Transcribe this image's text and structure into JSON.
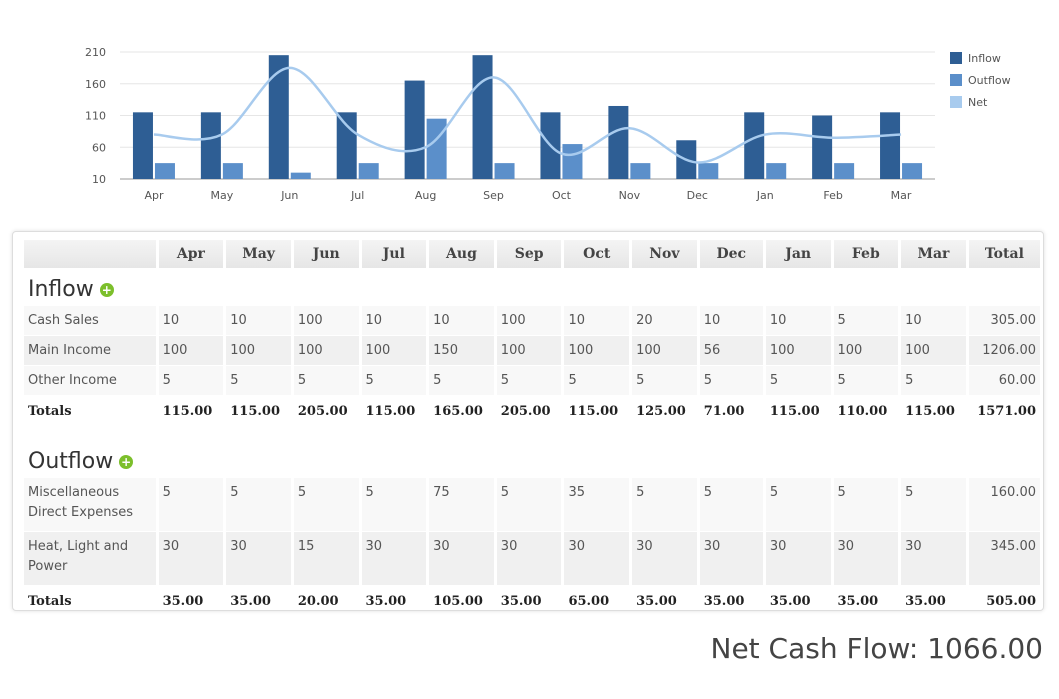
{
  "chart_data": {
    "type": "bar",
    "categories": [
      "Apr",
      "May",
      "Jun",
      "Jul",
      "Aug",
      "Sep",
      "Oct",
      "Nov",
      "Dec",
      "Jan",
      "Feb",
      "Mar"
    ],
    "series": [
      {
        "name": "Inflow",
        "type": "bar",
        "color": "#2e5e94",
        "values": [
          115,
          115,
          205,
          115,
          165,
          205,
          115,
          125,
          71,
          115,
          110,
          115
        ]
      },
      {
        "name": "Outflow",
        "type": "bar",
        "color": "#5b8fca",
        "values": [
          35,
          35,
          20,
          35,
          105,
          35,
          65,
          35,
          35,
          35,
          35,
          35
        ]
      },
      {
        "name": "Net",
        "type": "line",
        "color": "#a8cbee",
        "values": [
          80,
          80,
          185,
          80,
          60,
          170,
          50,
          90,
          36,
          80,
          75,
          80
        ]
      }
    ],
    "yticks": [
      "210",
      "160",
      "110",
      "60",
      "10"
    ],
    "ylim": [
      10,
      210
    ],
    "legend": "right",
    "grid": true
  },
  "table": {
    "months": [
      "Apr",
      "May",
      "Jun",
      "Jul",
      "Aug",
      "Sep",
      "Oct",
      "Nov",
      "Dec",
      "Jan",
      "Feb",
      "Mar"
    ],
    "total_header": "Total",
    "inflow": {
      "title": "Inflow",
      "rows": [
        {
          "label": "Cash Sales",
          "values": [
            "10",
            "10",
            "100",
            "10",
            "10",
            "100",
            "10",
            "20",
            "10",
            "10",
            "5",
            "10"
          ],
          "total": "305.00"
        },
        {
          "label": "Main Income",
          "values": [
            "100",
            "100",
            "100",
            "100",
            "150",
            "100",
            "100",
            "100",
            "56",
            "100",
            "100",
            "100"
          ],
          "total": "1206.00"
        },
        {
          "label": "Other Income",
          "values": [
            "5",
            "5",
            "5",
            "5",
            "5",
            "5",
            "5",
            "5",
            "5",
            "5",
            "5",
            "5"
          ],
          "total": "60.00"
        }
      ],
      "totals_label": "Totals",
      "totals": [
        "115.00",
        "115.00",
        "205.00",
        "115.00",
        "165.00",
        "205.00",
        "115.00",
        "125.00",
        "71.00",
        "115.00",
        "110.00",
        "115.00"
      ],
      "grand_total": "1571.00"
    },
    "outflow": {
      "title": "Outflow",
      "rows": [
        {
          "label": "Miscellaneous Direct Expenses",
          "values": [
            "5",
            "5",
            "5",
            "5",
            "75",
            "5",
            "35",
            "5",
            "5",
            "5",
            "5",
            "5"
          ],
          "total": "160.00"
        },
        {
          "label": "Heat, Light and Power",
          "values": [
            "30",
            "30",
            "15",
            "30",
            "30",
            "30",
            "30",
            "30",
            "30",
            "30",
            "30",
            "30"
          ],
          "total": "345.00"
        }
      ],
      "totals_label": "Totals",
      "totals": [
        "35.00",
        "35.00",
        "20.00",
        "35.00",
        "105.00",
        "35.00",
        "65.00",
        "35.00",
        "35.00",
        "35.00",
        "35.00",
        "35.00"
      ],
      "grand_total": "505.00"
    }
  },
  "net_cash_flow": "Net Cash Flow: 1066.00"
}
